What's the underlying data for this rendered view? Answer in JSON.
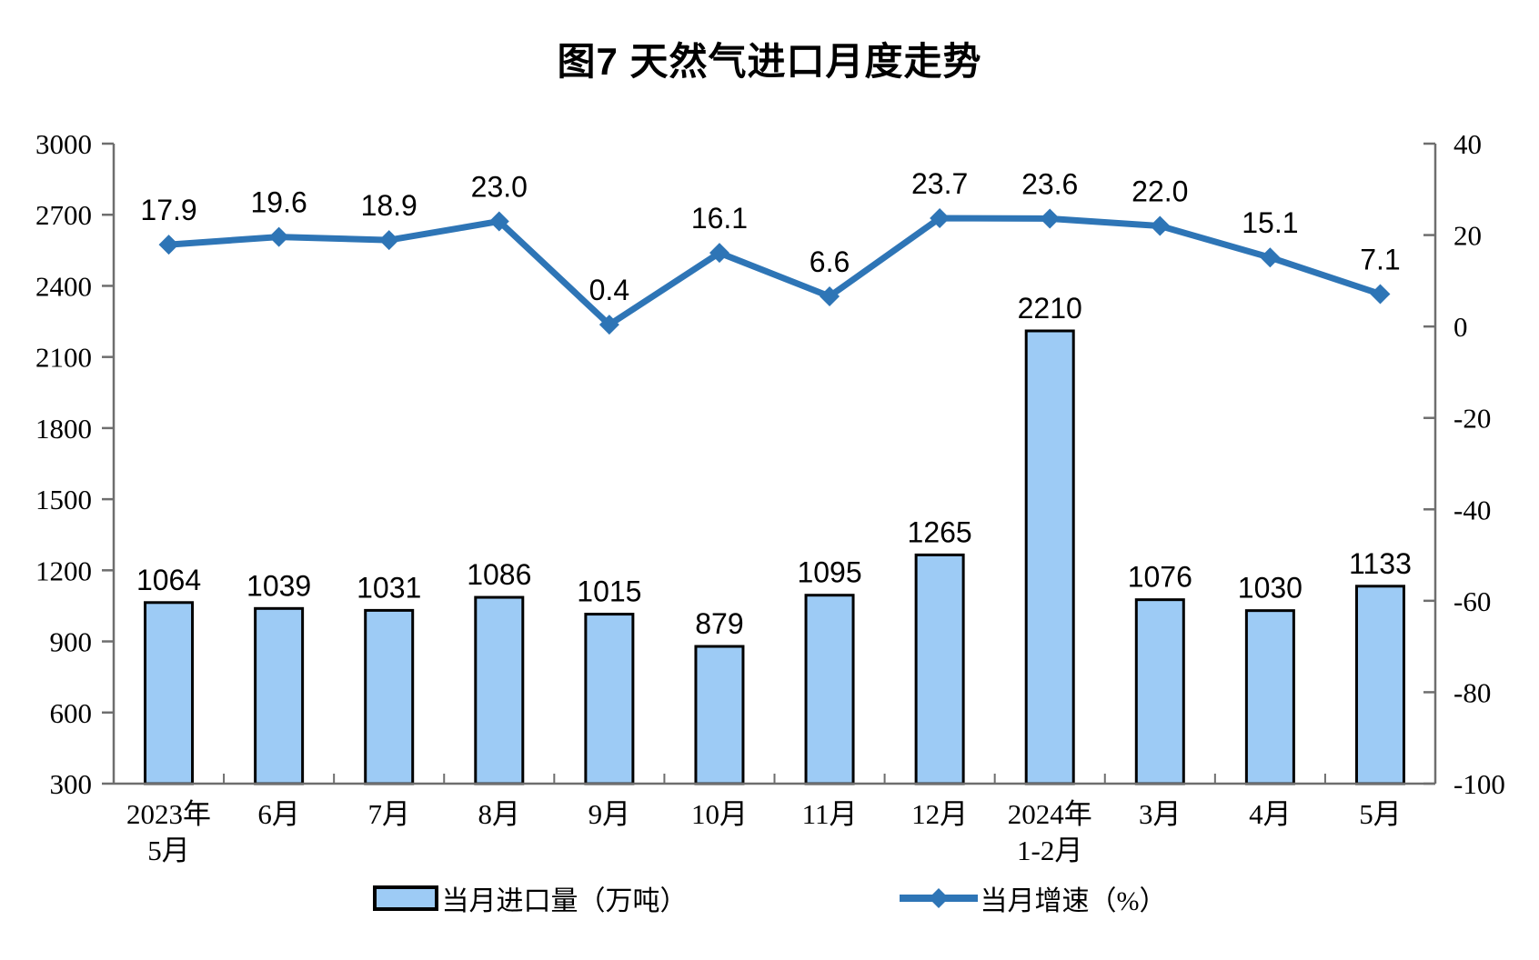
{
  "chart_data": {
    "type": "combo-bar-line",
    "title": "图7 天然气进口月度走势",
    "categories": [
      [
        "2023年",
        "5月"
      ],
      [
        "6月"
      ],
      [
        "7月"
      ],
      [
        "8月"
      ],
      [
        "9月"
      ],
      [
        "10月"
      ],
      [
        "11月"
      ],
      [
        "12月"
      ],
      [
        "2024年",
        "1-2月"
      ],
      [
        "3月"
      ],
      [
        "4月"
      ],
      [
        "5月"
      ]
    ],
    "series": [
      {
        "name": "当月进口量（万吨）",
        "type": "bar",
        "axis": "left",
        "values": [
          1064,
          1039,
          1031,
          1086,
          1015,
          879,
          1095,
          1265,
          2210,
          1076,
          1030,
          1133
        ]
      },
      {
        "name": "当月增速（%）",
        "type": "line",
        "axis": "right",
        "values": [
          17.9,
          19.6,
          18.9,
          23.0,
          0.4,
          16.1,
          6.6,
          23.7,
          23.6,
          22.0,
          15.1,
          7.1
        ],
        "labels": [
          "17.9",
          "19.6",
          "18.9",
          "23.0",
          "0.4",
          "16.1",
          "6.6",
          "23.7",
          "23.6",
          "22.0",
          "15.1",
          "7.1"
        ]
      }
    ],
    "left_axis": {
      "min": 300,
      "max": 3000,
      "ticks": [
        3000,
        2700,
        2400,
        2100,
        1800,
        1500,
        1200,
        900,
        600,
        300
      ]
    },
    "right_axis": {
      "min": -100,
      "max": 40,
      "ticks": [
        40,
        20,
        0,
        -20,
        -40,
        -60,
        -80,
        -100
      ]
    },
    "grid": false,
    "legend_position": "bottom",
    "colors": {
      "bar_fill": "#9DCBF5",
      "bar_stroke": "#000000",
      "line": "#2E75B6",
      "axis": "#6E6E6E",
      "text": "#000000"
    }
  }
}
